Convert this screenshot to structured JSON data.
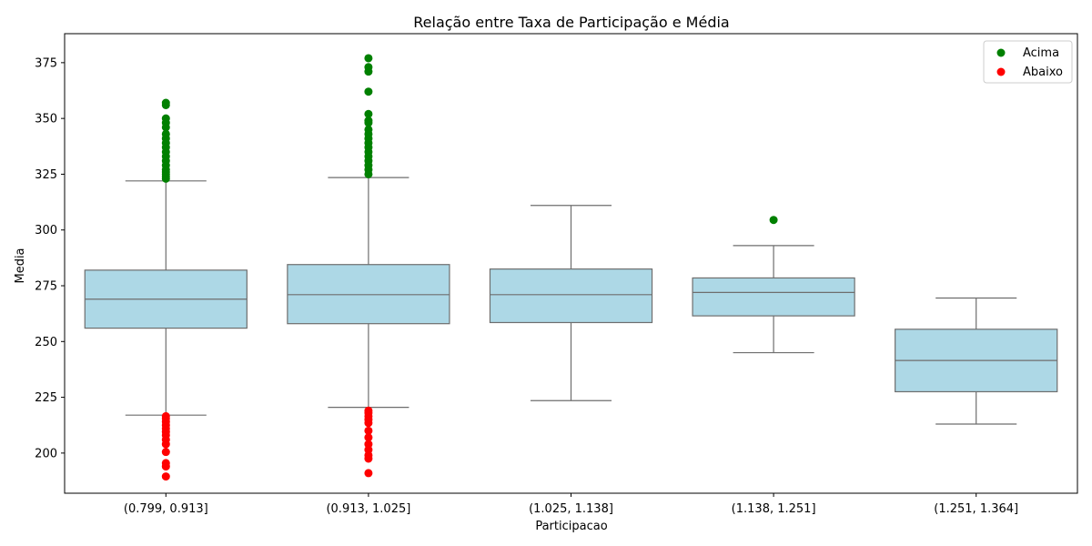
{
  "chart_data": {
    "type": "boxplot",
    "title": "Relação entre Taxa de Participação e Média",
    "xlabel": "Participacao",
    "ylabel": "Media",
    "ylim": [
      182,
      388
    ],
    "yticks": [
      200,
      225,
      250,
      275,
      300,
      325,
      350,
      375
    ],
    "grid": false,
    "legend_position": "top-right",
    "colors": {
      "box_fill": "#add8e6",
      "box_line": "#6e6e6e",
      "acima": "#008000",
      "abaixo": "#ff0000"
    },
    "categories": [
      "(0.799, 0.913]",
      "(0.913, 1.025]",
      "(1.025, 1.138]",
      "(1.138, 1.251]",
      "(1.251, 1.364]"
    ],
    "boxes": [
      {
        "whisker_low": 217,
        "q1": 256,
        "median": 269,
        "q3": 282,
        "whisker_high": 322
      },
      {
        "whisker_low": 220.5,
        "q1": 258,
        "median": 271,
        "q3": 284.5,
        "whisker_high": 323.5
      },
      {
        "whisker_low": 223.5,
        "q1": 258.5,
        "median": 271,
        "q3": 282.5,
        "whisker_high": 311
      },
      {
        "whisker_low": 245,
        "q1": 261.5,
        "median": 272,
        "q3": 278.5,
        "whisker_high": 293
      },
      {
        "whisker_low": 213,
        "q1": 227.5,
        "median": 241.5,
        "q3": 255.5,
        "whisker_high": 269.5
      }
    ],
    "series": [
      {
        "name": "Acima",
        "points": [
          {
            "category": 0,
            "values": [
              323,
              324,
              325,
              326,
              327,
              329,
              331,
              333,
              335,
              337,
              339,
              341,
              343,
              346,
              348,
              350,
              356,
              357
            ]
          },
          {
            "category": 1,
            "values": [
              325,
              327,
              329,
              331,
              333,
              335,
              337,
              339,
              341,
              343,
              345,
              348,
              349,
              352,
              362,
              371,
              373,
              377
            ]
          },
          {
            "category": 3,
            "values": [
              304.5
            ]
          }
        ]
      },
      {
        "name": "Abaixo",
        "points": [
          {
            "category": 0,
            "values": [
              189.5,
              194,
              195.5,
              200.5,
              204,
              206,
              208,
              209.5,
              211,
              212.5,
              214,
              215.5,
              216.5
            ]
          },
          {
            "category": 1,
            "values": [
              191,
              197.5,
              199,
              201.5,
              204,
              207,
              210,
              213.5,
              215,
              216.5,
              218,
              219
            ]
          }
        ]
      }
    ]
  }
}
